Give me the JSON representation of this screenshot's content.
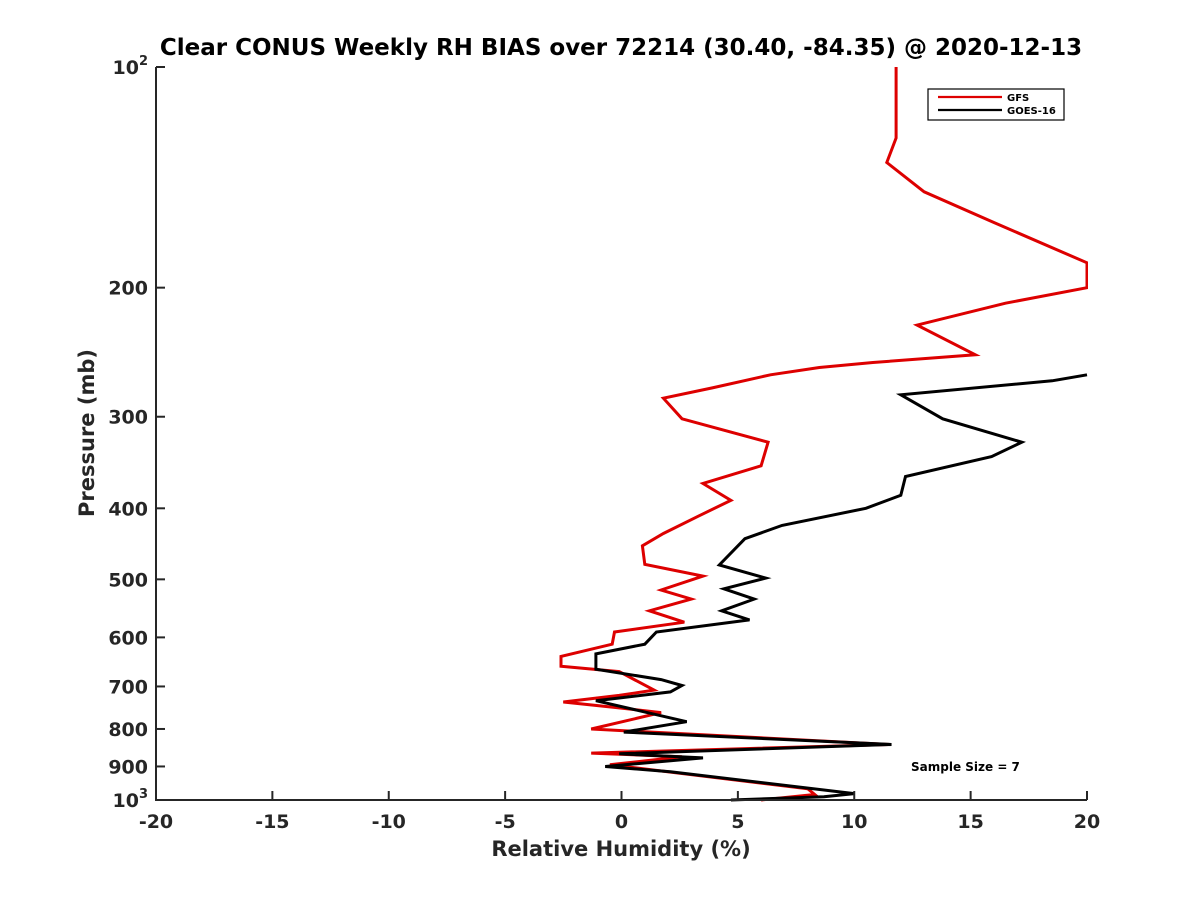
{
  "chart_data": {
    "type": "line",
    "title": "Clear CONUS Weekly RH BIAS over 72214 (30.40, -84.35) @ 2020-12-13",
    "xlabel": "Relative Humidity (%)",
    "ylabel": "Pressure (mb)",
    "xlim": [
      -20,
      20
    ],
    "ylim": [
      100,
      1000
    ],
    "y_scale": "log",
    "y_reversed": true,
    "grid": false,
    "legend_position": "top-right",
    "x_ticks": [
      -20,
      -15,
      -10,
      -5,
      0,
      5,
      10,
      15,
      20
    ],
    "x_tick_labels": [
      "-20",
      "-15",
      "-10",
      "-5",
      "0",
      "5",
      "10",
      "15",
      "20"
    ],
    "y_ticks": [
      {
        "value": 100,
        "base": "10",
        "exp": "2"
      },
      {
        "value": 200,
        "base": "200",
        "exp": ""
      },
      {
        "value": 300,
        "base": "300",
        "exp": ""
      },
      {
        "value": 400,
        "base": "400",
        "exp": ""
      },
      {
        "value": 500,
        "base": "500",
        "exp": ""
      },
      {
        "value": 600,
        "base": "600",
        "exp": ""
      },
      {
        "value": 700,
        "base": "700",
        "exp": ""
      },
      {
        "value": 800,
        "base": "800",
        "exp": ""
      },
      {
        "value": 900,
        "base": "900",
        "exp": ""
      },
      {
        "value": 1000,
        "base": "10",
        "exp": "3"
      }
    ],
    "annotation": "Sample Size = 7",
    "series": [
      {
        "name": "GFS",
        "color": "#dd0000",
        "points": [
          [
            11.8,
            100
          ],
          [
            11.8,
            125
          ],
          [
            11.4,
            135
          ],
          [
            13.0,
            148
          ],
          [
            16.0,
            163
          ],
          [
            20.0,
            185
          ],
          [
            20.0,
            200
          ],
          [
            16.5,
            210
          ],
          [
            12.7,
            225
          ],
          [
            15.2,
            247
          ],
          [
            10.8,
            253
          ],
          [
            8.5,
            257
          ],
          [
            6.4,
            263
          ],
          [
            3.9,
            274
          ],
          [
            1.8,
            283
          ],
          [
            2.6,
            302
          ],
          [
            6.3,
            325
          ],
          [
            6.0,
            350
          ],
          [
            3.5,
            370
          ],
          [
            4.7,
            390
          ],
          [
            3.3,
            410
          ],
          [
            1.8,
            433
          ],
          [
            0.9,
            450
          ],
          [
            1.0,
            477
          ],
          [
            3.5,
            495
          ],
          [
            1.7,
            517
          ],
          [
            3.0,
            532
          ],
          [
            1.2,
            552
          ],
          [
            2.7,
            572
          ],
          [
            -0.3,
            590
          ],
          [
            -0.4,
            613
          ],
          [
            -2.6,
            637
          ],
          [
            -2.6,
            657
          ],
          [
            -0.1,
            668
          ],
          [
            1.4,
            708
          ],
          [
            -0.1,
            720
          ],
          [
            -2.5,
            735
          ],
          [
            -0.2,
            748
          ],
          [
            1.7,
            760
          ],
          [
            -1.3,
            800
          ],
          [
            11.5,
            840
          ],
          [
            -1.3,
            863
          ],
          [
            2.6,
            873
          ],
          [
            -0.5,
            895
          ],
          [
            2.2,
            917
          ],
          [
            8.0,
            965
          ],
          [
            8.3,
            983
          ],
          [
            6.0,
            1000
          ]
        ]
      },
      {
        "name": "GOES-16",
        "color": "#000000",
        "points": [
          [
            20.0,
            263
          ],
          [
            18.5,
            268
          ],
          [
            12.0,
            280
          ],
          [
            13.8,
            302
          ],
          [
            17.2,
            325
          ],
          [
            15.9,
            340
          ],
          [
            12.2,
            362
          ],
          [
            12.0,
            384
          ],
          [
            10.5,
            400
          ],
          [
            6.9,
            422
          ],
          [
            5.3,
            440
          ],
          [
            4.2,
            478
          ],
          [
            6.2,
            498
          ],
          [
            4.4,
            515
          ],
          [
            5.7,
            532
          ],
          [
            4.3,
            552
          ],
          [
            5.5,
            568
          ],
          [
            1.5,
            590
          ],
          [
            1.0,
            613
          ],
          [
            -1.1,
            632
          ],
          [
            -1.1,
            663
          ],
          [
            1.7,
            685
          ],
          [
            2.6,
            698
          ],
          [
            2.1,
            712
          ],
          [
            -1.1,
            732
          ],
          [
            2.8,
            782
          ],
          [
            0.1,
            808
          ],
          [
            11.6,
            840
          ],
          [
            -0.1,
            865
          ],
          [
            3.5,
            876
          ],
          [
            -0.7,
            900
          ],
          [
            2.1,
            915
          ],
          [
            10.0,
            980
          ],
          [
            8.7,
            990
          ],
          [
            4.7,
            1000
          ]
        ]
      }
    ]
  }
}
